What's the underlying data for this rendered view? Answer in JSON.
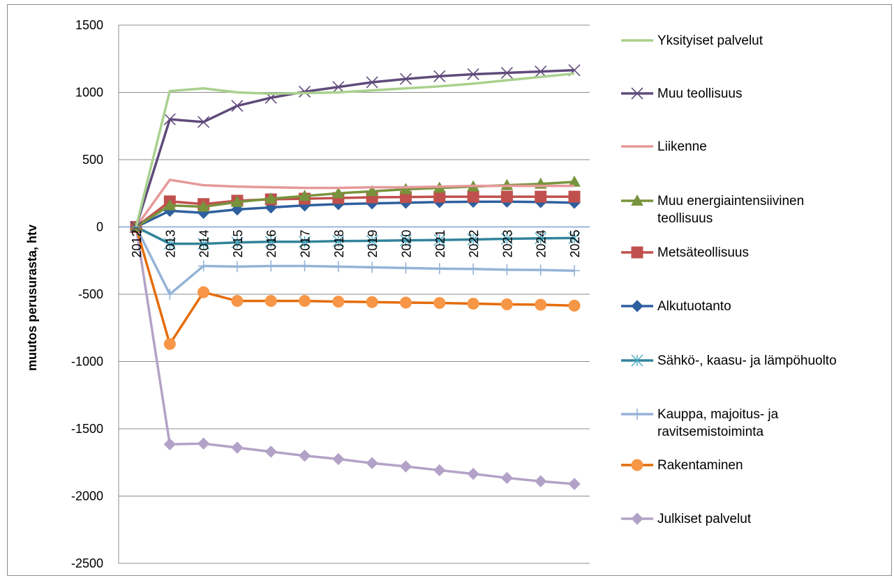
{
  "chart_data": {
    "type": "line",
    "title": "",
    "xlabel": "",
    "ylabel": "muutos perusurasta, htv",
    "ylim": [
      -2500,
      1500
    ],
    "yticks": [
      1500,
      1000,
      500,
      0,
      -500,
      -1000,
      -1500,
      -2000,
      -2500
    ],
    "grid": true,
    "legend_position": "right",
    "categories": [
      "2012",
      "2013",
      "2014",
      "2015",
      "2016",
      "2017",
      "2018",
      "2019",
      "2020",
      "2021",
      "2022",
      "2023",
      "2024",
      "2025"
    ],
    "series": [
      {
        "name": "Yksityiset palvelut",
        "color": "#9bbb59",
        "light": "#a9d18e",
        "marker": "none",
        "values": [
          0,
          1010,
          1030,
          1000,
          990,
          995,
          1000,
          1015,
          1030,
          1045,
          1065,
          1090,
          1115,
          1140
        ]
      },
      {
        "name": "Muu teollisuus",
        "color": "#604a7b",
        "marker": "x",
        "values": [
          0,
          800,
          780,
          900,
          960,
          1005,
          1040,
          1075,
          1100,
          1120,
          1135,
          1145,
          1155,
          1165
        ]
      },
      {
        "name": "Liikenne",
        "color": "#e6999a",
        "marker": "none",
        "values": [
          0,
          350,
          310,
          300,
          295,
          290,
          290,
          295,
          295,
          300,
          305,
          305,
          305,
          305
        ]
      },
      {
        "name": "Muu energiaintensiivinen teollisuus",
        "label_lines": [
          "Muu energiaintensiivinen",
          "teollisuus"
        ],
        "color": "#77933c",
        "marker": "triangle",
        "values": [
          0,
          160,
          150,
          185,
          210,
          230,
          250,
          265,
          280,
          290,
          300,
          310,
          320,
          335
        ]
      },
      {
        "name": "Metsäteollisuus",
        "color": "#c0504d",
        "marker": "square",
        "values": [
          0,
          190,
          170,
          195,
          205,
          210,
          215,
          220,
          222,
          225,
          225,
          225,
          225,
          225
        ]
      },
      {
        "name": "Alkutuotanto",
        "color": "#2e5f9e",
        "marker": "diamond",
        "values": [
          0,
          120,
          105,
          130,
          145,
          160,
          170,
          175,
          180,
          185,
          187,
          188,
          185,
          180
        ]
      },
      {
        "name": "Sähkö-, kaasu- ja lämpöhuolto",
        "color": "#4bacc6",
        "line_color": "#31849b",
        "marker": "asterisk",
        "values": [
          0,
          -125,
          -125,
          -115,
          -110,
          -110,
          -105,
          -103,
          -100,
          -97,
          -93,
          -88,
          -85,
          -82
        ]
      },
      {
        "name": "Kauppa, majoitus- ja ravitsemistoiminta",
        "label_lines": [
          "Kauppa, majoitus- ja",
          "ravitsemistoiminta"
        ],
        "color": "#95b3d7",
        "marker": "plus",
        "values": [
          0,
          -500,
          -290,
          -295,
          -290,
          -290,
          -295,
          -300,
          -305,
          -310,
          -312,
          -318,
          -320,
          -325
        ]
      },
      {
        "name": "Rakentaminen",
        "color": "#f79646",
        "line_color": "#e46c0a",
        "marker": "circle",
        "values": [
          0,
          -870,
          -485,
          -550,
          -550,
          -550,
          -555,
          -558,
          -562,
          -565,
          -570,
          -575,
          -578,
          -585
        ]
      },
      {
        "name": "Julkiset palvelut",
        "color": "#b3a2c7",
        "marker": "diamond",
        "values": [
          0,
          -1615,
          -1610,
          -1640,
          -1670,
          -1700,
          -1725,
          -1755,
          -1780,
          -1808,
          -1835,
          -1865,
          -1890,
          -1910
        ]
      }
    ]
  }
}
